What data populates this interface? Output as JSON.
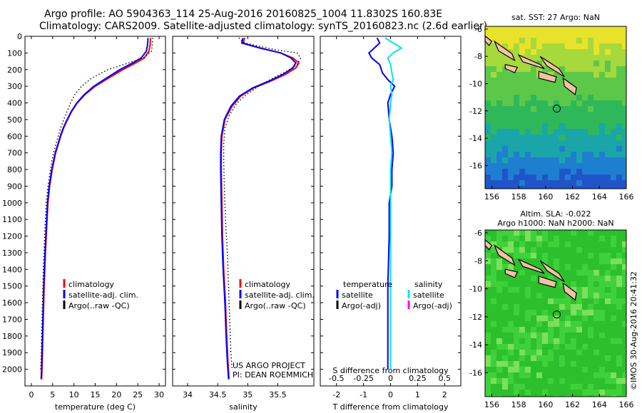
{
  "header": {
    "line1": "Argo profile: AO 5904363_114 25-Aug-2016 20160825_1004 11.8302S 160.83E",
    "line2": "Climatology: CARS2009. Satellite-adjusted climatology: synTS_20160823.nc (2.6d earlier)"
  },
  "colors": {
    "climatology": "#ff0000",
    "satellite": "#0000ff",
    "argo": "#000000",
    "satellite_salinity": "#00e5ee",
    "argo_adj_salinity": "#ff00ff"
  },
  "depth_axis": {
    "ylim": [
      0,
      2100
    ],
    "ticks": [
      0,
      100,
      200,
      300,
      400,
      500,
      600,
      700,
      800,
      900,
      1000,
      1100,
      1200,
      1300,
      1400,
      1500,
      1600,
      1700,
      1800,
      1900,
      2000
    ],
    "inverted": true
  },
  "chart_data": [
    {
      "id": "temperature",
      "type": "line",
      "xlabel": "temperature (deg C)",
      "xlim": [
        -1.5,
        31.5
      ],
      "xticks": [
        0,
        5,
        10,
        15,
        20,
        25,
        30
      ],
      "legend": [
        "climatology",
        "satellite-adj. clim.",
        "Argo(..raw -QC)"
      ],
      "legend_position": "bottom-right",
      "series": [
        {
          "name": "climatology",
          "color_key": "climatology",
          "style": "solid",
          "x": [
            28.0,
            27.9,
            27.6,
            26.5,
            24.5,
            21.5,
            18.2,
            15.0,
            12.6,
            10.8,
            9.5,
            8.5,
            7.6,
            6.9,
            6.3,
            5.7,
            5.3,
            4.9,
            4.6,
            4.3,
            4.1,
            3.9,
            3.7,
            3.3,
            3.0,
            2.8,
            2.6,
            2.5,
            2.4
          ],
          "depth": [
            10,
            50,
            90,
            130,
            160,
            200,
            250,
            300,
            350,
            400,
            450,
            500,
            550,
            600,
            650,
            700,
            750,
            800,
            850,
            900,
            950,
            1000,
            1100,
            1300,
            1500,
            1700,
            1900,
            2000,
            2060
          ]
        },
        {
          "name": "satellite-adj. clim.",
          "color_key": "satellite",
          "style": "solid",
          "x": [
            27.4,
            27.3,
            27.0,
            25.8,
            23.8,
            20.8,
            17.7,
            14.7,
            12.4,
            10.7,
            9.4,
            8.4,
            7.5,
            6.8,
            6.2,
            5.6,
            5.2,
            4.8,
            4.5,
            4.2,
            4.0,
            3.8,
            3.6,
            3.2,
            2.9,
            2.7,
            2.5,
            2.4,
            2.3
          ],
          "depth": [
            10,
            50,
            90,
            130,
            160,
            200,
            250,
            300,
            350,
            400,
            450,
            500,
            550,
            600,
            650,
            700,
            750,
            800,
            850,
            900,
            950,
            1000,
            1100,
            1300,
            1500,
            1700,
            1900,
            2000,
            2060
          ]
        },
        {
          "name": "Argo(..raw -QC)",
          "color_key": "argo",
          "style": "dotted",
          "x": [
            28.5,
            28.4,
            28.2,
            26.3,
            22.8,
            18.0,
            14.2,
            11.8,
            10.2,
            9.2,
            8.4,
            7.6,
            6.9,
            6.3,
            5.7,
            5.2,
            4.8,
            4.5,
            4.2,
            3.9,
            3.7,
            3.5,
            3.1,
            2.8,
            2.6,
            2.4,
            2.3,
            2.2
          ],
          "depth": [
            10,
            50,
            90,
            130,
            160,
            200,
            250,
            300,
            350,
            400,
            450,
            500,
            550,
            600,
            650,
            700,
            750,
            800,
            850,
            900,
            950,
            1000,
            1200,
            1400,
            1600,
            1800,
            1950,
            2000
          ]
        }
      ]
    },
    {
      "id": "salinity",
      "type": "line",
      "xlabel": "salinity",
      "xlim": [
        33.75,
        36.1
      ],
      "xticks": [
        34,
        34.5,
        35,
        35.5
      ],
      "legend": [
        "climatology",
        "satellite-adj. clim.",
        "Argo(..raw -QC)"
      ],
      "legend_position": "bottom-right",
      "annotation": [
        "US ARGO PROJECT",
        "PI: DEAN ROEMMICH"
      ],
      "series": [
        {
          "name": "climatology",
          "color_key": "climatology",
          "style": "solid",
          "x": [
            34.95,
            34.92,
            35.2,
            35.55,
            35.75,
            35.85,
            35.8,
            35.62,
            35.38,
            35.1,
            34.88,
            34.74,
            34.62,
            34.57,
            34.56,
            34.56,
            34.57,
            34.58,
            34.6,
            34.63,
            34.65,
            34.67,
            34.69
          ],
          "depth": [
            10,
            40,
            70,
            100,
            130,
            160,
            190,
            230,
            270,
            310,
            360,
            420,
            500,
            600,
            700,
            800,
            1000,
            1200,
            1400,
            1600,
            1800,
            1950,
            2060
          ]
        },
        {
          "name": "satellite-adj. clim.",
          "color_key": "satellite",
          "style": "solid",
          "x": [
            34.92,
            34.9,
            35.2,
            35.55,
            35.72,
            35.8,
            35.75,
            35.58,
            35.35,
            35.08,
            34.86,
            34.72,
            34.61,
            34.56,
            34.55,
            34.55,
            34.56,
            34.57,
            34.59,
            34.62,
            34.64,
            34.66,
            34.68
          ],
          "depth": [
            10,
            40,
            70,
            100,
            130,
            160,
            190,
            230,
            270,
            310,
            360,
            420,
            500,
            600,
            700,
            800,
            1000,
            1200,
            1400,
            1600,
            1800,
            1950,
            2060
          ]
        },
        {
          "name": "Argo(..raw -QC)",
          "color_key": "argo",
          "style": "dotted",
          "x": [
            34.85,
            34.95,
            35.45,
            35.82,
            35.88,
            35.82,
            35.65,
            35.42,
            35.18,
            34.98,
            34.82,
            34.7,
            34.62,
            34.6,
            34.6,
            34.61,
            34.63,
            34.66,
            34.68,
            34.7,
            34.72,
            34.74
          ],
          "depth": [
            10,
            40,
            80,
            100,
            130,
            170,
            210,
            250,
            300,
            350,
            400,
            470,
            550,
            650,
            750,
            900,
            1100,
            1300,
            1500,
            1700,
            1900,
            2000
          ]
        }
      ]
    },
    {
      "id": "difference",
      "type": "line",
      "xlabel": "T difference from climatology",
      "xlabel_top": "S difference from climatology",
      "xlim": [
        -2.6,
        2.6
      ],
      "xticks": [
        -2,
        -1,
        0,
        1,
        2
      ],
      "xticks_top_values": [
        -2,
        -1,
        0,
        1,
        2
      ],
      "xticks_top_labels": [
        "-0.5",
        "-0.25",
        "0",
        "0.25",
        "0.5"
      ],
      "legend_groups": [
        {
          "header": "temperature",
          "items": [
            "satellite",
            "Argo(-adj)"
          ]
        },
        {
          "header": "salinity",
          "items": [
            "satellite",
            "Argo(-adj)"
          ]
        }
      ],
      "legend_position": "bottom",
      "series": [
        {
          "name": "temperature satellite",
          "color_key": "satellite",
          "style": "solid",
          "x": [
            -0.5,
            -0.4,
            -0.6,
            -0.8,
            -0.7,
            -0.4,
            -0.3,
            -0.1,
            0.15,
            0.0,
            -0.1,
            -0.05,
            0.05,
            0.1,
            0.05,
            0.05,
            -0.05,
            -0.05,
            -0.1,
            -0.1
          ],
          "depth": [
            10,
            40,
            70,
            100,
            130,
            170,
            220,
            260,
            300,
            350,
            400,
            500,
            600,
            700,
            800,
            900,
            1000,
            1200,
            1500,
            2000
          ]
        },
        {
          "name": "salinity satellite",
          "color_key": "satellite_salinity",
          "style": "solid",
          "x": [
            -0.2,
            0.1,
            0.4,
            0.1,
            -0.1,
            0.0,
            0.05,
            0.1,
            0.0,
            0.05,
            0.0,
            -0.05,
            0.0,
            0.05,
            0.0,
            0.0,
            0.0,
            0.0
          ],
          "depth": [
            10,
            40,
            70,
            100,
            130,
            170,
            220,
            260,
            300,
            350,
            400,
            500,
            600,
            700,
            800,
            1000,
            1500,
            2000
          ]
        }
      ]
    },
    {
      "id": "sst-map",
      "type": "heatmap",
      "title": "sat. SST: 27 Argo: NaN",
      "xlim": [
        155.5,
        166
      ],
      "ylim": [
        -17.7,
        -5.8
      ],
      "xticks": [
        156,
        158,
        160,
        162,
        164,
        166
      ],
      "yticks": [
        -6,
        -8,
        -10,
        -12,
        -14,
        -16
      ],
      "argo_position": {
        "lon": 160.83,
        "lat": -11.83
      }
    },
    {
      "id": "sla-map",
      "type": "heatmap",
      "title": "Altim. SLA: -0.022",
      "subtitle": "Argo h1000: NaN h2000: NaN",
      "xlim": [
        155.5,
        166
      ],
      "ylim": [
        -17.7,
        -5.8
      ],
      "xticks": [
        156,
        158,
        160,
        162,
        164,
        166
      ],
      "yticks": [
        -6,
        -8,
        -10,
        -12,
        -14,
        -16
      ],
      "argo_position": {
        "lon": 160.83,
        "lat": -11.83
      }
    }
  ],
  "stamp": "©IMOS 30-Aug-2016 20:41:32"
}
